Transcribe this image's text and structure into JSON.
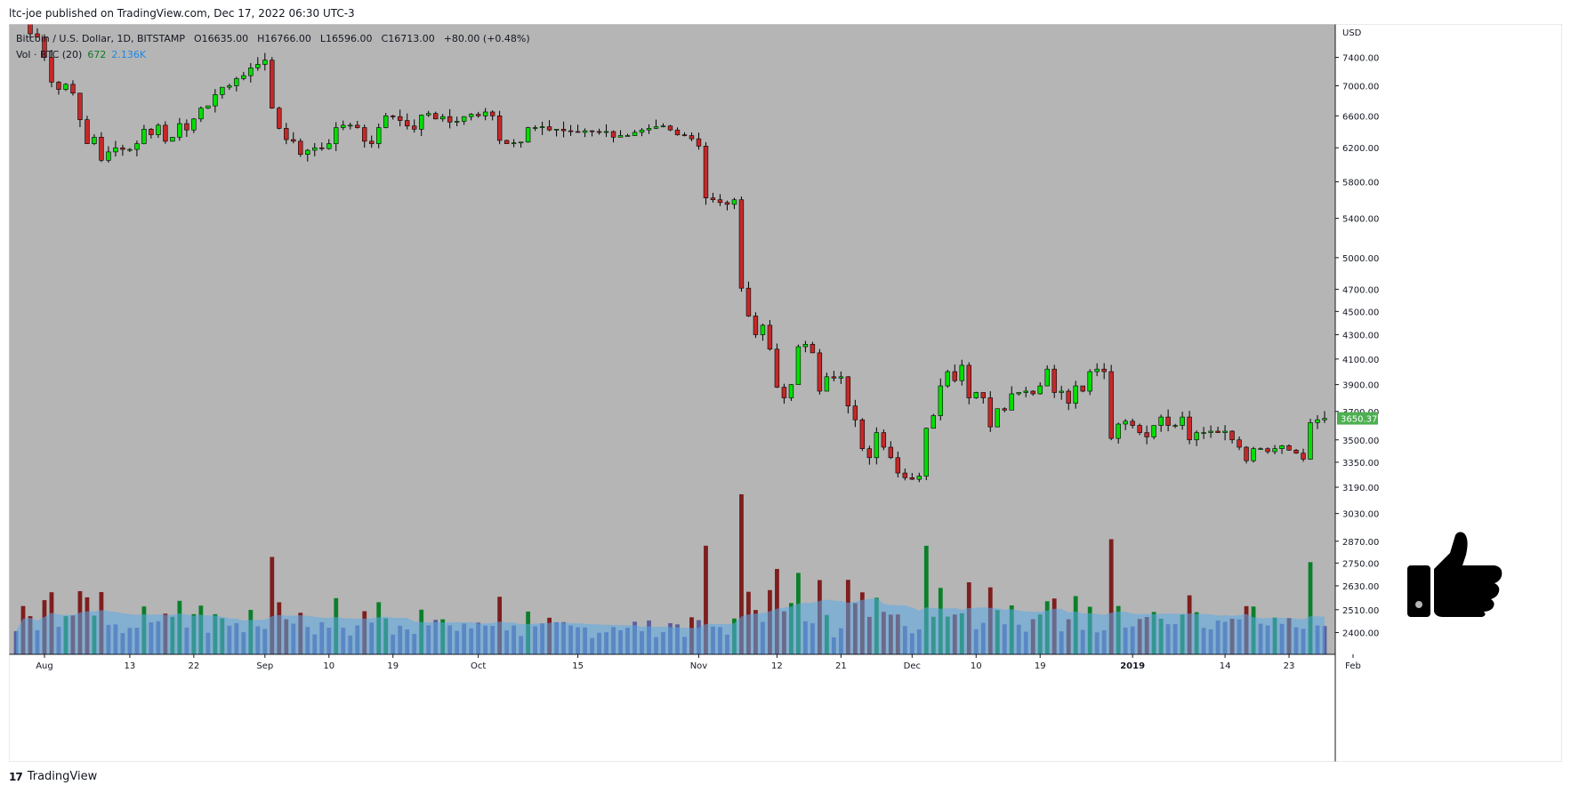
{
  "header": {
    "published": "ltc-joe published on TradingView.com, Dec 17, 2022 06:30 UTC-3"
  },
  "legend": {
    "symbol": "Bitcoin / U.S. Dollar, 1D, BITSTAMP",
    "open": "O16635.00",
    "high": "H16766.00",
    "low": "L16596.00",
    "close": "C16713.00",
    "change": "+80.00 (+0.48%)",
    "vol_label": "Vol · BTC (20)",
    "vol_value": "672",
    "vol_ma": "2.136K"
  },
  "footer": {
    "brand_mark": "17",
    "brand": "TradingView"
  },
  "colors": {
    "background": "#b5b5b5",
    "up": "#00e000",
    "down": "#c62828",
    "vol_up": "#0b7f2a",
    "vol_down": "#7e1e1e",
    "vol_neutral": "#5c5e9c",
    "vol_ma": "#5aa9e6",
    "last_price": "#4caf50"
  },
  "chart_data": {
    "type": "candlestick",
    "currency_label": "USD",
    "scale": "log",
    "ylim": [
      2300,
      7900
    ],
    "y_ticks": [
      "7400.00",
      "7000.00",
      "6600.00",
      "6200.00",
      "5800.00",
      "5400.00",
      "5000.00",
      "4700.00",
      "4500.00",
      "4300.00",
      "4100.00",
      "3900.00",
      "3700.00",
      "3500.00",
      "3350.00",
      "3190.00",
      "3030.00",
      "2870.00",
      "2750.00",
      "2630.00",
      "2510.00",
      "2400.00"
    ],
    "last_price_label": "3650.37",
    "last_price": 3650.37,
    "x_ticks": [
      {
        "label": "Aug",
        "index": 4
      },
      {
        "label": "13",
        "index": 16
      },
      {
        "label": "22",
        "index": 25
      },
      {
        "label": "Sep",
        "index": 35
      },
      {
        "label": "10",
        "index": 44
      },
      {
        "label": "19",
        "index": 53
      },
      {
        "label": "Oct",
        "index": 65
      },
      {
        "label": "15",
        "index": 79
      },
      {
        "label": "Nov",
        "index": 96
      },
      {
        "label": "12",
        "index": 107
      },
      {
        "label": "21",
        "index": 116
      },
      {
        "label": "Dec",
        "index": 126
      },
      {
        "label": "10",
        "index": 135
      },
      {
        "label": "19",
        "index": 144
      },
      {
        "label": "2019",
        "index": 157
      },
      {
        "label": "14",
        "index": 170
      },
      {
        "label": "23",
        "index": 179
      },
      {
        "label": "Feb",
        "index": 188
      }
    ],
    "first_date": "2018-07-28",
    "closes": [
      8200,
      7960,
      7750,
      7700,
      7400,
      7050,
      6950,
      7020,
      6900,
      6550,
      6250,
      6330,
      6050,
      6150,
      6200,
      6180,
      6180,
      6250,
      6430,
      6360,
      6480,
      6280,
      6330,
      6500,
      6420,
      6560,
      6700,
      6730,
      6880,
      6980,
      7000,
      7100,
      7140,
      7250,
      7300,
      7360,
      6700,
      6440,
      6300,
      6280,
      6120,
      6170,
      6200,
      6190,
      6250,
      6450,
      6480,
      6480,
      6450,
      6280,
      6250,
      6450,
      6600,
      6590,
      6540,
      6470,
      6430,
      6610,
      6630,
      6560,
      6590,
      6520,
      6530,
      6590,
      6620,
      6600,
      6650,
      6600,
      6290,
      6250,
      6260,
      6270,
      6450,
      6450,
      6460,
      6420,
      6430,
      6410,
      6400,
      6390,
      6410,
      6400,
      6390,
      6400,
      6330,
      6350,
      6350,
      6390,
      6420,
      6440,
      6460,
      6470,
      6420,
      6360,
      6350,
      6310,
      6220,
      5620,
      5600,
      5570,
      5550,
      5600,
      4710,
      4460,
      4300,
      4380,
      4180,
      3880,
      3800,
      3900,
      4200,
      4220,
      4150,
      3850,
      3960,
      3950,
      3960,
      3740,
      3640,
      3440,
      3380,
      3550,
      3450,
      3380,
      3280,
      3250,
      3240,
      3260,
      3580,
      3670,
      3890,
      4000,
      3930,
      4050,
      3800,
      3840,
      3800,
      3590,
      3720,
      3710,
      3830,
      3840,
      3850,
      3830,
      3890,
      4020,
      3840,
      3850,
      3760,
      3890,
      3850,
      4000,
      4020,
      4000,
      3510,
      3610,
      3630,
      3600,
      3550,
      3520,
      3600,
      3660,
      3600,
      3600,
      3660,
      3500,
      3550,
      3550,
      3560,
      3550,
      3560,
      3500,
      3450,
      3360,
      3440,
      3440,
      3420,
      3440,
      3460,
      3430,
      3410,
      3370,
      3620,
      3640,
      3650
    ]
  }
}
